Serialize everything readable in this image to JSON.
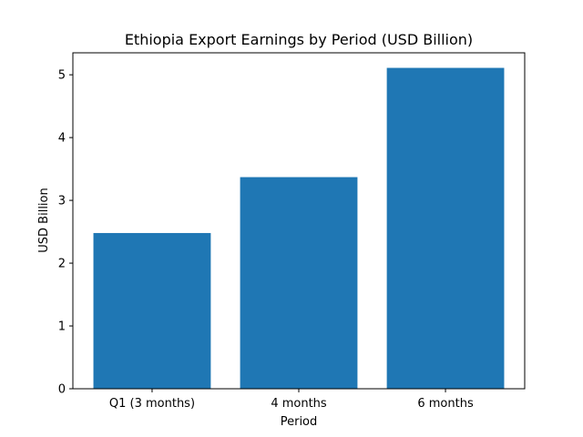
{
  "chart_data": {
    "type": "bar",
    "title": "Ethiopia Export Earnings by Period (USD Billion)",
    "xlabel": "Period",
    "ylabel": "USD Billion",
    "categories": [
      "Q1 (3 months)",
      "4 months",
      "6 months"
    ],
    "values": [
      2.48,
      3.37,
      5.11
    ],
    "ylim": [
      0,
      5.35
    ],
    "yticks": [
      "0",
      "1",
      "2",
      "3",
      "4",
      "5"
    ],
    "bar_color": "#1f77b4",
    "grid": false,
    "legend": "none"
  }
}
